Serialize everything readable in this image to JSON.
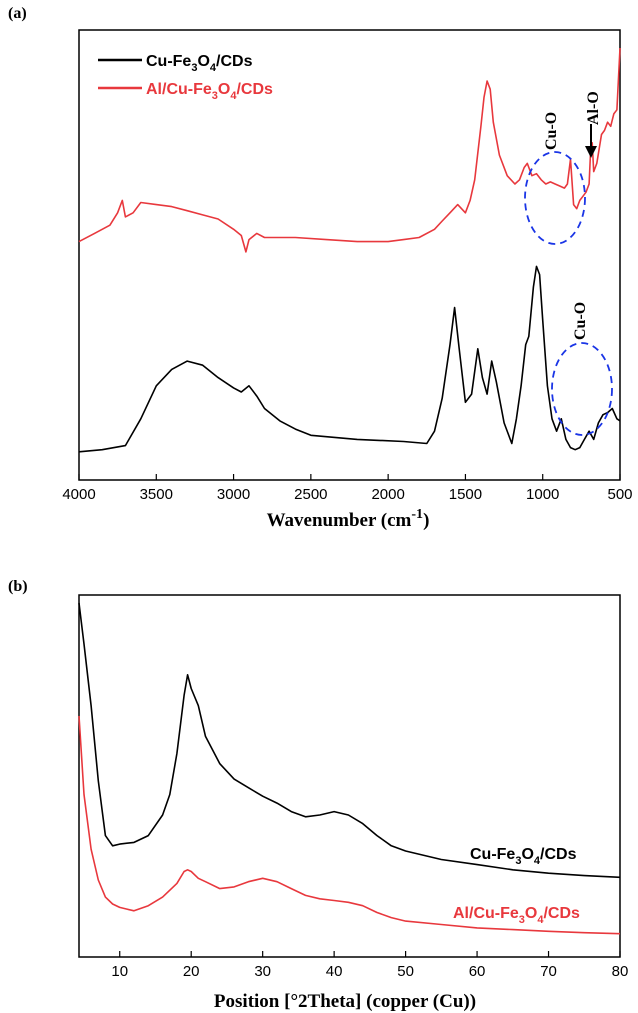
{
  "chart_data": [
    {
      "panel": "(a)",
      "type": "line",
      "xlabel": "Wavenumber (cm",
      "xlabel_sup": "-1",
      "xlabel_close": ")",
      "x_ticks": [
        4000,
        3500,
        3000,
        2500,
        2000,
        1500,
        1000,
        500
      ],
      "xlim": [
        4000,
        500
      ],
      "x_reversed": true,
      "y_ticks_shown": false,
      "series": [
        {
          "name_parts": [
            "Cu-Fe",
            "3",
            "O",
            "4",
            "/CDs"
          ],
          "color": "#000000",
          "x": [
            4000,
            3850,
            3700,
            3600,
            3500,
            3400,
            3300,
            3200,
            3100,
            3000,
            2950,
            2900,
            2850,
            2800,
            2700,
            2600,
            2500,
            2200,
            1900,
            1750,
            1700,
            1650,
            1600,
            1570,
            1540,
            1500,
            1460,
            1420,
            1390,
            1360,
            1330,
            1300,
            1250,
            1200,
            1170,
            1140,
            1110,
            1090,
            1060,
            1040,
            1020,
            1000,
            970,
            940,
            910,
            880,
            850,
            820,
            790,
            760,
            730,
            700,
            670,
            640,
            610,
            580,
            550,
            520,
            500
          ],
          "y": [
            2.0,
            2.5,
            3.5,
            10.0,
            18.0,
            22.0,
            24.0,
            23.0,
            20.0,
            17.5,
            16.5,
            18.0,
            15.5,
            12.5,
            9.5,
            7.5,
            6.0,
            5.0,
            4.5,
            4.0,
            7.0,
            15.0,
            28.0,
            37.0,
            27.0,
            14.0,
            16.0,
            27.0,
            20.0,
            16.0,
            24.0,
            19.0,
            9.0,
            4.0,
            10.0,
            18.0,
            28.0,
            30.0,
            42.0,
            47.0,
            45.0,
            34.0,
            18.0,
            10.0,
            7.0,
            10.0,
            5.0,
            3.0,
            2.5,
            3.0,
            5.0,
            7.0,
            5.0,
            9.0,
            11.0,
            11.5,
            12.5,
            10.0,
            9.5
          ]
        },
        {
          "name_parts": [
            "Al/Cu-Fe",
            "3",
            "O",
            "4",
            "/CDs"
          ],
          "color": "#e8383d",
          "x": [
            4000,
            3900,
            3800,
            3750,
            3720,
            3700,
            3650,
            3600,
            3500,
            3400,
            3300,
            3200,
            3100,
            3000,
            2950,
            2920,
            2900,
            2850,
            2800,
            2600,
            2400,
            2200,
            2000,
            1900,
            1800,
            1700,
            1650,
            1600,
            1550,
            1500,
            1470,
            1440,
            1400,
            1380,
            1360,
            1340,
            1320,
            1280,
            1230,
            1180,
            1150,
            1120,
            1100,
            1070,
            1040,
            1010,
            980,
            950,
            920,
            890,
            860,
            840,
            820,
            800,
            780,
            760,
            740,
            720,
            700,
            690,
            680,
            670,
            650,
            620,
            600,
            580,
            560,
            540,
            520,
            500
          ],
          "y": [
            53.0,
            55.0,
            57.0,
            60.0,
            63.0,
            59.0,
            60.0,
            62.5,
            62.0,
            61.5,
            60.5,
            59.5,
            58.5,
            56.0,
            54.5,
            50.5,
            53.5,
            55.0,
            54.0,
            54.0,
            53.5,
            53.0,
            53.0,
            53.5,
            54.0,
            56.0,
            58.0,
            60.0,
            62.0,
            60.0,
            63.0,
            68.0,
            81.0,
            88.0,
            92.0,
            90.0,
            82.0,
            74.0,
            69.0,
            67.0,
            68.0,
            71.0,
            72.0,
            69.0,
            69.5,
            68.0,
            67.0,
            67.5,
            67.0,
            66.5,
            66.0,
            67.0,
            73.0,
            62.0,
            61.0,
            63.0,
            64.0,
            65.0,
            67.0,
            75.0,
            77.0,
            70.0,
            72.0,
            79.0,
            80.0,
            82.0,
            81.0,
            84.0,
            85.0,
            100.0
          ]
        }
      ],
      "annotations": [
        "Cu-O",
        "Al-O",
        "Cu-O"
      ]
    },
    {
      "panel": "(b)",
      "type": "line",
      "xlabel": "Position [°2Theta] (copper (Cu))",
      "x_ticks": [
        10,
        20,
        30,
        40,
        50,
        60,
        70,
        80
      ],
      "xlim": [
        4.3,
        80
      ],
      "y_ticks_shown": false,
      "series": [
        {
          "name_parts": [
            "Cu-Fe",
            "3",
            "O",
            "4",
            "/CDs"
          ],
          "color": "#000000",
          "x": [
            4.3,
            5,
            6,
            7,
            8,
            9,
            10,
            12,
            14,
            16,
            17,
            18,
            19,
            19.5,
            20,
            21,
            22,
            24,
            26,
            28,
            30,
            32,
            34,
            36,
            38,
            40,
            42,
            44,
            46,
            48,
            50,
            55,
            60,
            65,
            70,
            75,
            80
          ],
          "y": [
            100.0,
            88.0,
            70.0,
            48.0,
            32.0,
            29.0,
            29.5,
            30.0,
            32.0,
            38.0,
            44.0,
            56.0,
            73.0,
            79.0,
            75.0,
            70.0,
            61.0,
            53.0,
            48.5,
            46.0,
            43.5,
            41.5,
            39.0,
            37.5,
            38.0,
            39.0,
            38.0,
            35.5,
            32.0,
            29.0,
            27.5,
            25.0,
            23.5,
            22.0,
            21.0,
            20.3,
            19.8
          ]
        },
        {
          "name_parts": [
            "Al/Cu-Fe",
            "3",
            "O",
            "4",
            "/CDs"
          ],
          "color": "#e8383d",
          "x": [
            4.3,
            5,
            6,
            7,
            8,
            9,
            10,
            11,
            12,
            14,
            16,
            18,
            19,
            19.5,
            20,
            21,
            22,
            24,
            26,
            28,
            30,
            32,
            34,
            36,
            38,
            40,
            42,
            44,
            46,
            48,
            50,
            55,
            60,
            65,
            70,
            75,
            80
          ],
          "y": [
            67.0,
            44.0,
            28.0,
            19.0,
            14.0,
            12.0,
            11.0,
            10.5,
            10.0,
            11.5,
            14.0,
            18.0,
            21.5,
            22.0,
            21.5,
            19.5,
            18.5,
            16.5,
            17.0,
            18.5,
            19.5,
            18.5,
            16.5,
            14.5,
            13.5,
            13.0,
            12.5,
            11.5,
            9.5,
            8.0,
            7.0,
            6.0,
            5.0,
            4.5,
            4.0,
            3.6,
            3.3
          ]
        }
      ],
      "series_labels_inline": true
    }
  ]
}
